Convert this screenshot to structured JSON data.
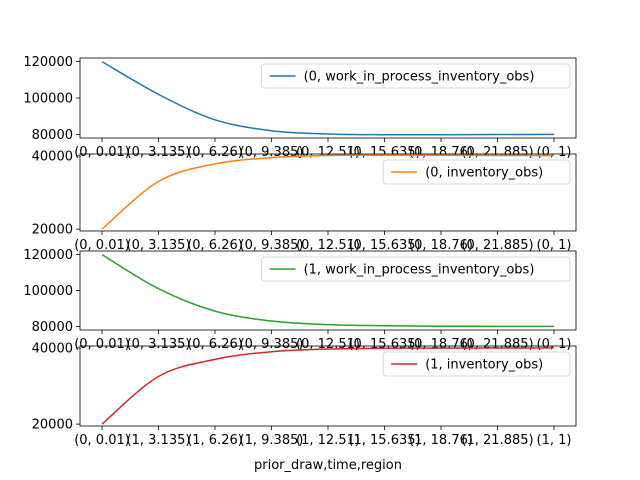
{
  "chart_data": {
    "type": "line",
    "xlabel": "prior_draw,time,region",
    "x_tick_labels": [
      "(0, 0.01)",
      "(0, 3.135)",
      "(0, 6.26)",
      "(0, 9.385)",
      "(0, 12.51)",
      "(0, 15.635)",
      "(0, 18.76)",
      "(0, 21.885)",
      "(0, 1)"
    ],
    "bottom_x_tick_labels": [
      "(0, 0.01)",
      "(1, 3.135)",
      "(1, 6.26)",
      "(1, 9.385)",
      "(1, 12.51)",
      "(1, 15.635)",
      "(1, 18.76)",
      "(1, 21.885)",
      "(1, 1)"
    ],
    "x": [
      0,
      1,
      2,
      3,
      4,
      5,
      6,
      7,
      8
    ],
    "panels": [
      {
        "series_name": "(0, work_in_process_inventory_obs)",
        "color": "#1f77b4",
        "ylim": [
          78000,
          122000
        ],
        "yticks": [
          80000,
          100000,
          120000
        ],
        "values": [
          120000,
          102000,
          88000,
          82000,
          80200,
          79800,
          79800,
          79900,
          80000
        ],
        "legend": "upper-right"
      },
      {
        "series_name": "(0, inventory_obs)",
        "color": "#ff7f0e",
        "ylim": [
          19500,
          40500
        ],
        "yticks": [
          20000,
          40000
        ],
        "values": [
          20000,
          33000,
          37800,
          39500,
          40100,
          40200,
          40150,
          40100,
          40050
        ],
        "legend": "upper-right"
      },
      {
        "series_name": "(1, work_in_process_inventory_obs)",
        "color": "#2ca02c",
        "ylim": [
          78000,
          122000
        ],
        "yticks": [
          80000,
          100000,
          120000
        ],
        "values": [
          120000,
          101000,
          88500,
          83000,
          81000,
          80400,
          80100,
          80050,
          80000
        ],
        "legend": "upper-right"
      },
      {
        "series_name": "(1, inventory_obs)",
        "color": "#d62728",
        "ylim": [
          19500,
          40500
        ],
        "yticks": [
          20000,
          40000
        ],
        "values": [
          20000,
          32500,
          37000,
          39000,
          39700,
          39900,
          39950,
          39980,
          40000
        ],
        "legend": "upper-right"
      }
    ]
  }
}
